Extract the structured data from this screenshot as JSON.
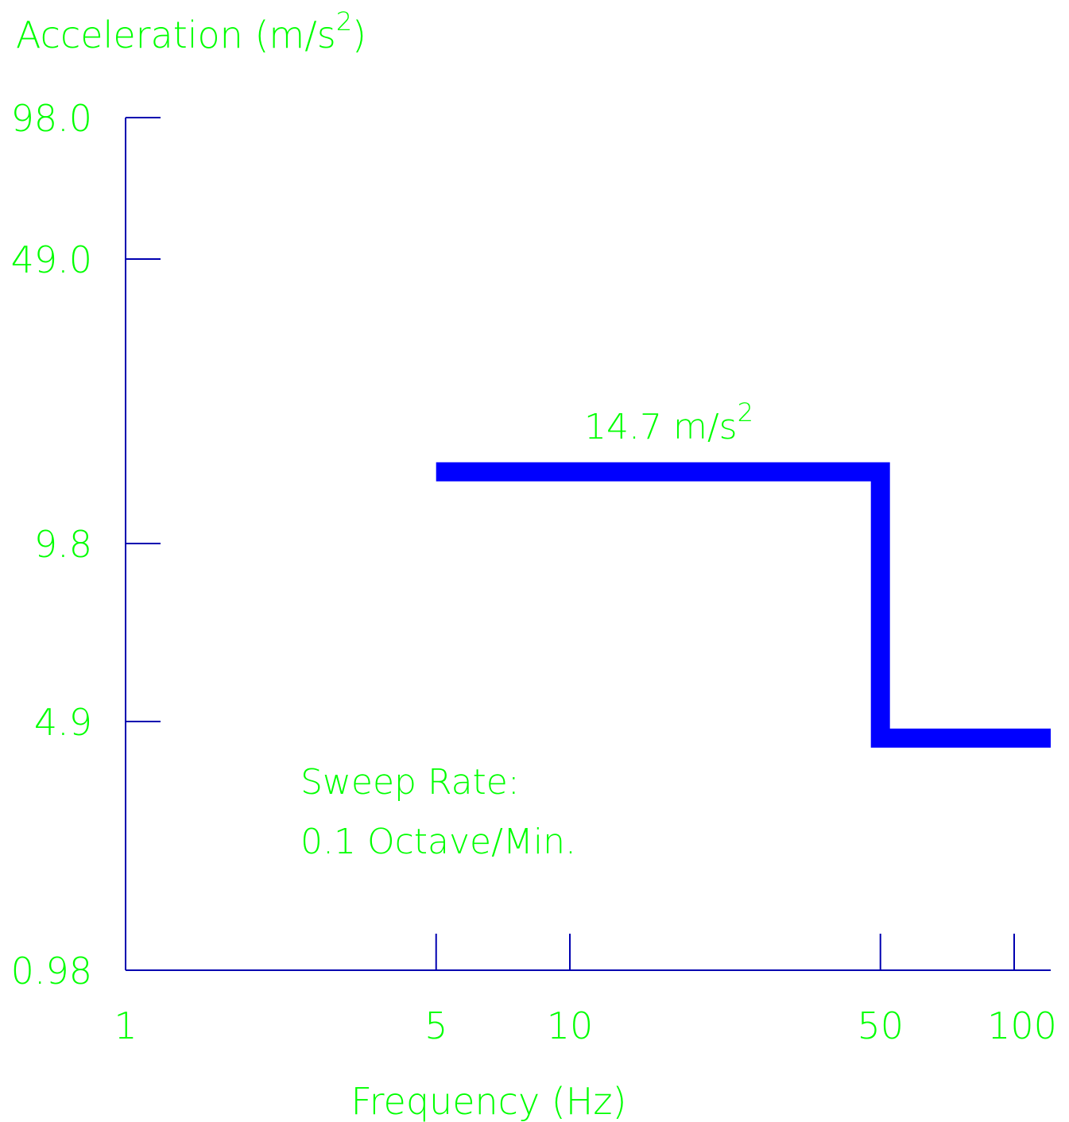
{
  "chart_data": {
    "type": "line",
    "ylabel_main": "Acceleration (m/s",
    "ylabel_sup": "2",
    "ylabel_close": ")",
    "xlabel": "Frequency (Hz)",
    "xscale": "log",
    "yscale": "log",
    "xlim": [
      1,
      130
    ],
    "ylim": [
      0.98,
      98.0
    ],
    "x_ticks": [
      {
        "value": 1,
        "label": "1",
        "mark": false
      },
      {
        "value": 5,
        "label": "5",
        "mark": true
      },
      {
        "value": 10,
        "label": "10",
        "mark": true
      },
      {
        "value": 50,
        "label": "50",
        "mark": true
      },
      {
        "value": 100,
        "label": "100",
        "mark": true
      }
    ],
    "y_ticks": [
      {
        "value": 0.98,
        "label": "0.98",
        "mark": false
      },
      {
        "value": 4.9,
        "label": "4.9",
        "mark": true
      },
      {
        "value": 9.8,
        "label": "9.8",
        "mark": true
      },
      {
        "value": 49.0,
        "label": "49.0",
        "mark": true
      },
      {
        "value": 98.0,
        "label": "98.0",
        "mark": true
      }
    ],
    "series": [
      {
        "x": [
          5,
          50,
          50,
          130
        ],
        "y": [
          14.7,
          14.7,
          4.4,
          4.4
        ],
        "color": "#0000ff"
      }
    ],
    "annotations": {
      "level_main": "14.7 m/s",
      "level_sup": "2",
      "sweep_line1": "Sweep Rate:",
      "sweep_line2": "0.1 Octave/Min."
    },
    "grid": false,
    "legend": "none",
    "colors": {
      "text": "#00ff00",
      "axis": "#0000b0",
      "series": "#0000ff",
      "background": "#ffffff"
    }
  }
}
